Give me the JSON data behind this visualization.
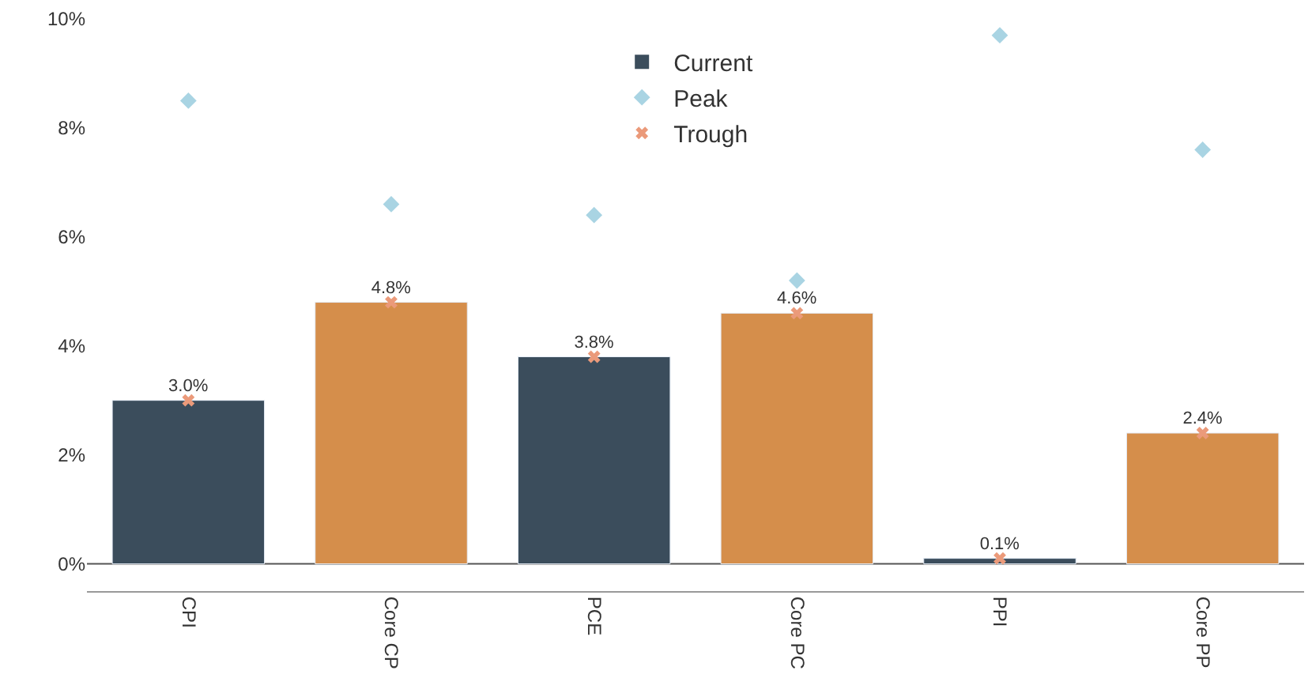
{
  "chart_data": {
    "type": "bar",
    "categories": [
      "CPI",
      "Core CP",
      "PCE",
      "Core PC",
      "PPI",
      "Core PP"
    ],
    "series": [
      {
        "name": "Current",
        "color": "#3b4d5c",
        "colors": [
          "#3b4d5c",
          "#d58e4b",
          "#3b4d5c",
          "#d58e4b",
          "#3b4d5c",
          "#d58e4b"
        ],
        "values": [
          3.0,
          4.8,
          3.8,
          4.6,
          0.1,
          2.4
        ],
        "value_labels": [
          "3.0%",
          "4.8%",
          "3.8%",
          "4.6%",
          "0.1%",
          "2.4%"
        ]
      },
      {
        "name": "Peak",
        "type": "scatter",
        "marker": "diamond",
        "color": "#a9d4e3",
        "values": [
          8.5,
          6.6,
          6.4,
          5.2,
          9.7,
          7.6
        ]
      },
      {
        "name": "Trough",
        "type": "scatter",
        "marker": "cross",
        "color": "#eb9a7a",
        "values": [
          3.0,
          4.8,
          3.8,
          4.6,
          0.1,
          2.4
        ]
      }
    ],
    "ylim": [
      -0.5,
      10
    ],
    "yticks": [
      {
        "value": 0,
        "label": "0%"
      },
      {
        "value": 2,
        "label": "2%"
      },
      {
        "value": 4,
        "label": "4%"
      },
      {
        "value": 6,
        "label": "6%"
      },
      {
        "value": 8,
        "label": "8%"
      },
      {
        "value": 10,
        "label": "10%"
      }
    ],
    "grid": false,
    "ref_lines": [
      {
        "axis": "y",
        "value": 0,
        "color": "#555555"
      }
    ],
    "legend": "top"
  }
}
